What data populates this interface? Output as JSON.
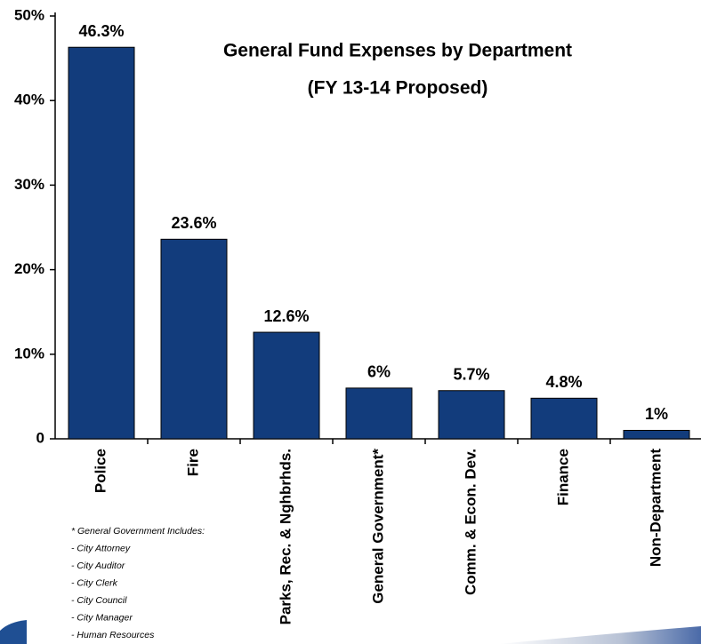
{
  "chart_data": {
    "type": "bar",
    "title": "General Fund Expenses by Department",
    "subtitle": "(FY 13-14 Proposed)",
    "categories": [
      "Police",
      "Fire",
      "Parks, Rec. & Nghbrhds.",
      "General Government*",
      "Comm. & Econ. Dev.",
      "Finance",
      "Non-Department"
    ],
    "values": [
      46.3,
      23.6,
      12.6,
      6,
      5.7,
      4.8,
      1
    ],
    "value_labels": [
      "46.3%",
      "23.6%",
      "12.6%",
      "6%",
      "5.7%",
      "4.8%",
      "1%"
    ],
    "color": "#123c7c",
    "ylim": [
      0,
      50
    ],
    "yticks": [
      0,
      {
        "value": 10,
        "label": "10%"
      },
      {
        "value": 20,
        "label": "20%"
      },
      {
        "value": 30,
        "label": "30%"
      },
      {
        "value": 40,
        "label": "40%"
      },
      {
        "value": 50,
        "label": "50%"
      }
    ],
    "grid": false,
    "footnote": [
      "* General Government Includes:",
      "- City Attorney",
      "- City Auditor",
      "- City Clerk",
      "- City Council",
      "- City Manager",
      "- Human Resources"
    ]
  }
}
